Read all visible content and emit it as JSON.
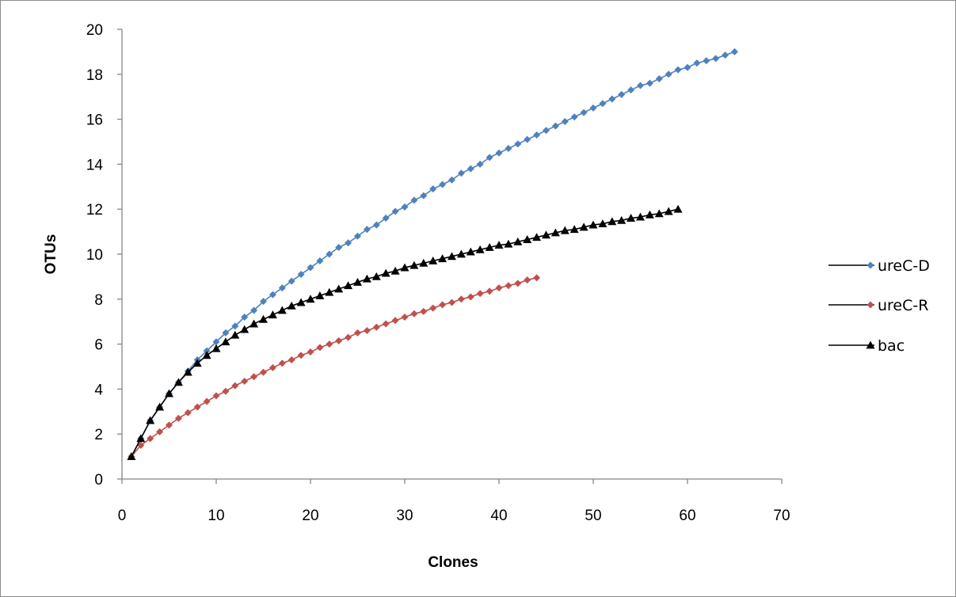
{
  "chart_data": {
    "type": "line",
    "title": "",
    "xlabel": "Clones",
    "ylabel": "OTUs",
    "xlim": [
      0,
      70
    ],
    "ylim": [
      0,
      20
    ],
    "x_ticks": [
      "0",
      "10",
      "20",
      "30",
      "40",
      "50",
      "60",
      "70"
    ],
    "y_ticks": [
      "0",
      "2",
      "4",
      "6",
      "8",
      "10",
      "12",
      "14",
      "16",
      "18",
      "20"
    ],
    "grid": false,
    "legend_position": "right",
    "series": [
      {
        "name": "ureC-D",
        "color": "#4f81bd",
        "marker": "diamond",
        "x": [
          1,
          2,
          3,
          4,
          5,
          6,
          7,
          8,
          9,
          10,
          11,
          12,
          13,
          14,
          15,
          16,
          17,
          18,
          19,
          20,
          21,
          22,
          23,
          24,
          25,
          26,
          27,
          28,
          29,
          30,
          31,
          32,
          33,
          34,
          35,
          36,
          37,
          38,
          39,
          40,
          41,
          42,
          43,
          44,
          45,
          46,
          47,
          48,
          49,
          50,
          51,
          52,
          53,
          54,
          55,
          56,
          57,
          58,
          59,
          60,
          61,
          62,
          63,
          64,
          65
        ],
        "y": [
          1.0,
          1.8,
          2.6,
          3.2,
          3.8,
          4.3,
          4.8,
          5.3,
          5.7,
          6.1,
          6.5,
          6.8,
          7.2,
          7.5,
          7.9,
          8.2,
          8.5,
          8.8,
          9.1,
          9.4,
          9.7,
          10.0,
          10.3,
          10.5,
          10.8,
          11.1,
          11.3,
          11.6,
          11.9,
          12.1,
          12.4,
          12.6,
          12.9,
          13.1,
          13.3,
          13.6,
          13.8,
          14.0,
          14.3,
          14.5,
          14.7,
          14.9,
          15.1,
          15.3,
          15.5,
          15.7,
          15.9,
          16.1,
          16.3,
          16.5,
          16.7,
          16.9,
          17.1,
          17.3,
          17.5,
          17.6,
          17.8,
          18.0,
          18.2,
          18.3,
          18.5,
          18.6,
          18.7,
          18.85,
          19.0
        ]
      },
      {
        "name": "ureC-R",
        "color": "#c0504d",
        "marker": "diamond",
        "x": [
          1,
          2,
          3,
          4,
          5,
          6,
          7,
          8,
          9,
          10,
          11,
          12,
          13,
          14,
          15,
          16,
          17,
          18,
          19,
          20,
          21,
          22,
          23,
          24,
          25,
          26,
          27,
          28,
          29,
          30,
          31,
          32,
          33,
          34,
          35,
          36,
          37,
          38,
          39,
          40,
          41,
          42,
          43,
          44
        ],
        "y": [
          1.0,
          1.5,
          1.8,
          2.1,
          2.4,
          2.7,
          2.95,
          3.2,
          3.45,
          3.7,
          3.9,
          4.15,
          4.35,
          4.55,
          4.75,
          4.95,
          5.15,
          5.3,
          5.5,
          5.65,
          5.85,
          6.0,
          6.15,
          6.3,
          6.5,
          6.6,
          6.75,
          6.9,
          7.05,
          7.2,
          7.35,
          7.45,
          7.6,
          7.75,
          7.85,
          8.0,
          8.1,
          8.25,
          8.35,
          8.5,
          8.6,
          8.7,
          8.85,
          8.95
        ]
      },
      {
        "name": "bac",
        "color": "#000000",
        "marker": "triangle",
        "x": [
          1,
          2,
          3,
          4,
          5,
          6,
          7,
          8,
          9,
          10,
          11,
          12,
          13,
          14,
          15,
          16,
          17,
          18,
          19,
          20,
          21,
          22,
          23,
          24,
          25,
          26,
          27,
          28,
          29,
          30,
          31,
          32,
          33,
          34,
          35,
          36,
          37,
          38,
          39,
          40,
          41,
          42,
          43,
          44,
          45,
          46,
          47,
          48,
          49,
          50,
          51,
          52,
          53,
          54,
          55,
          56,
          57,
          58,
          59
        ],
        "y": [
          1.0,
          1.8,
          2.6,
          3.2,
          3.8,
          4.3,
          4.75,
          5.15,
          5.5,
          5.8,
          6.1,
          6.4,
          6.65,
          6.9,
          7.1,
          7.3,
          7.5,
          7.7,
          7.85,
          8.0,
          8.15,
          8.3,
          8.45,
          8.6,
          8.75,
          8.9,
          9.0,
          9.15,
          9.25,
          9.4,
          9.5,
          9.6,
          9.7,
          9.8,
          9.9,
          10.0,
          10.1,
          10.2,
          10.3,
          10.4,
          10.45,
          10.55,
          10.65,
          10.75,
          10.85,
          10.95,
          11.05,
          11.1,
          11.2,
          11.3,
          11.35,
          11.45,
          11.5,
          11.6,
          11.65,
          11.75,
          11.8,
          11.9,
          12.0
        ]
      }
    ]
  }
}
